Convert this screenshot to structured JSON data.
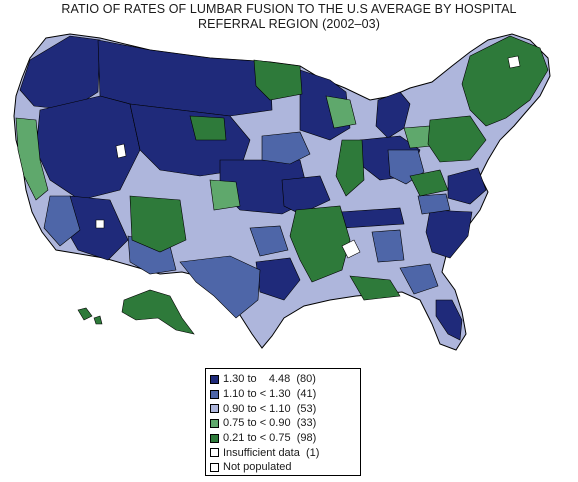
{
  "title_line1": "RATIO OF RATES OF LUMBAR FUSION TO THE U.S AVERAGE BY HOSPITAL",
  "title_line2": "REFERRAL REGION (2002–03)",
  "colors": {
    "navy": "#1f2a7a",
    "blue": "#4e66a8",
    "lavender": "#aeb6dc",
    "lightgreen": "#5fa86c",
    "darkgreen": "#2e7a3a",
    "white": "#ffffff",
    "border": "#000000"
  },
  "legend": [
    {
      "label": "1.30 to    4.48  (80)",
      "color": "#1f2a7a"
    },
    {
      "label": "1.10 to < 1.30  (41)",
      "color": "#4e66a8"
    },
    {
      "label": "0.90 to < 1.10  (53)",
      "color": "#aeb6dc"
    },
    {
      "label": "0.75 to < 0.90  (33)",
      "color": "#5fa86c"
    },
    {
      "label": "0.21 to < 0.75  (98)",
      "color": "#2e7a3a"
    },
    {
      "label": "Insufficient data  (1)",
      "color": "#ffffff"
    },
    {
      "label": "Not populated",
      "color": "#ffffff"
    }
  ]
}
